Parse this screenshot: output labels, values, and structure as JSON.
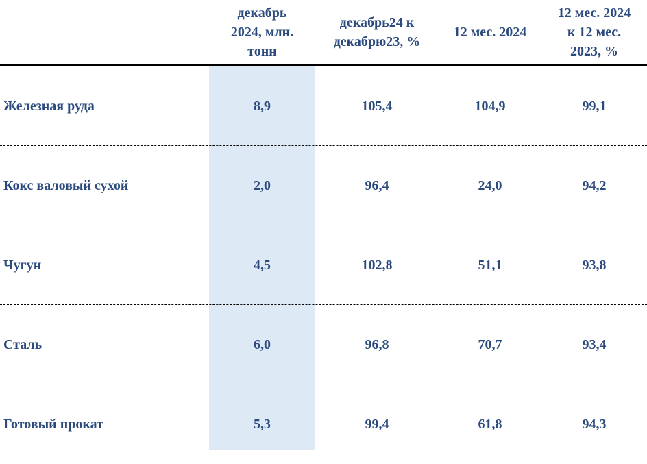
{
  "table": {
    "header": [
      [
        "декабрь",
        "2024, млн.",
        "тонн"
      ],
      [
        "декабрь24 к",
        "декабрю23, %"
      ],
      [
        "12 мес. 2024"
      ],
      [
        "12 мес. 2024",
        "к 12 мес.",
        "2023, %"
      ]
    ],
    "rows": [
      [
        "Железная руда",
        "8,9",
        "105,4",
        "104,9",
        "99,1"
      ],
      [
        "Кокс валовый сухой",
        "2,0",
        "96,4",
        "24,0",
        "94,2"
      ],
      [
        "Чугун",
        "4,5",
        "102,8",
        "51,1",
        "93,8"
      ],
      [
        "Сталь",
        "6,0",
        "96,8",
        "70,7",
        "93,4"
      ],
      [
        "Готовый прокат",
        "5,3",
        "99,4",
        "61,8",
        "94,3"
      ]
    ]
  }
}
